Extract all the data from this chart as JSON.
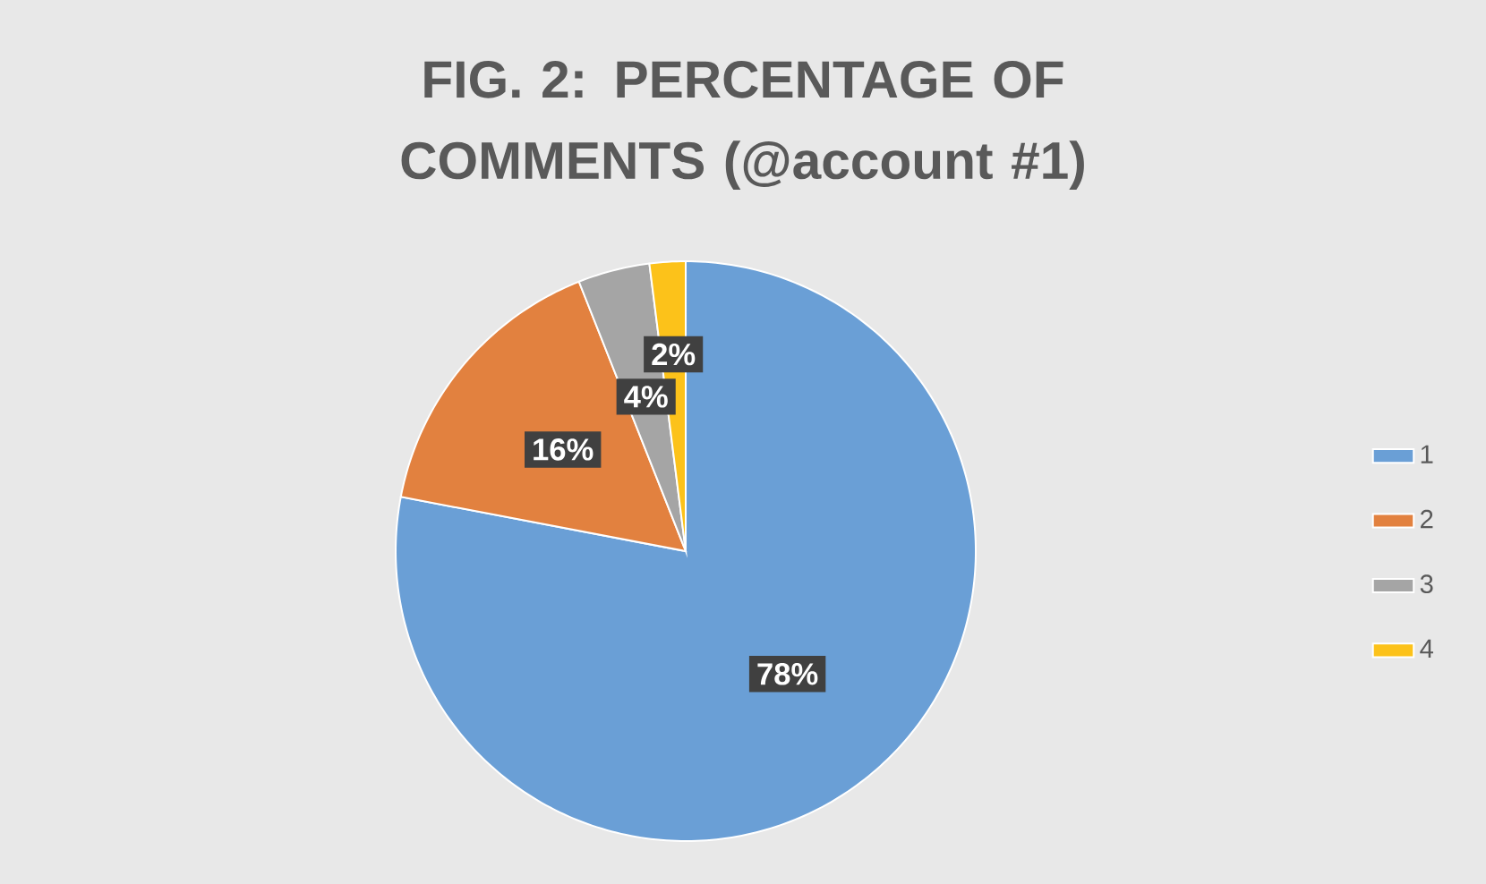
{
  "chart_data": {
    "type": "pie",
    "title": "FIG. 2: PERCENTAGE OF COMMENTS (@account #1)",
    "categories": [
      "1",
      "2",
      "3",
      "4"
    ],
    "values": [
      78,
      16,
      4,
      2
    ],
    "colors": [
      "#6a9fd6",
      "#e2813f",
      "#a5a5a5",
      "#fcc21a"
    ],
    "value_labels": [
      "78%",
      "16%",
      "4%",
      "2%"
    ],
    "legend": "right"
  }
}
